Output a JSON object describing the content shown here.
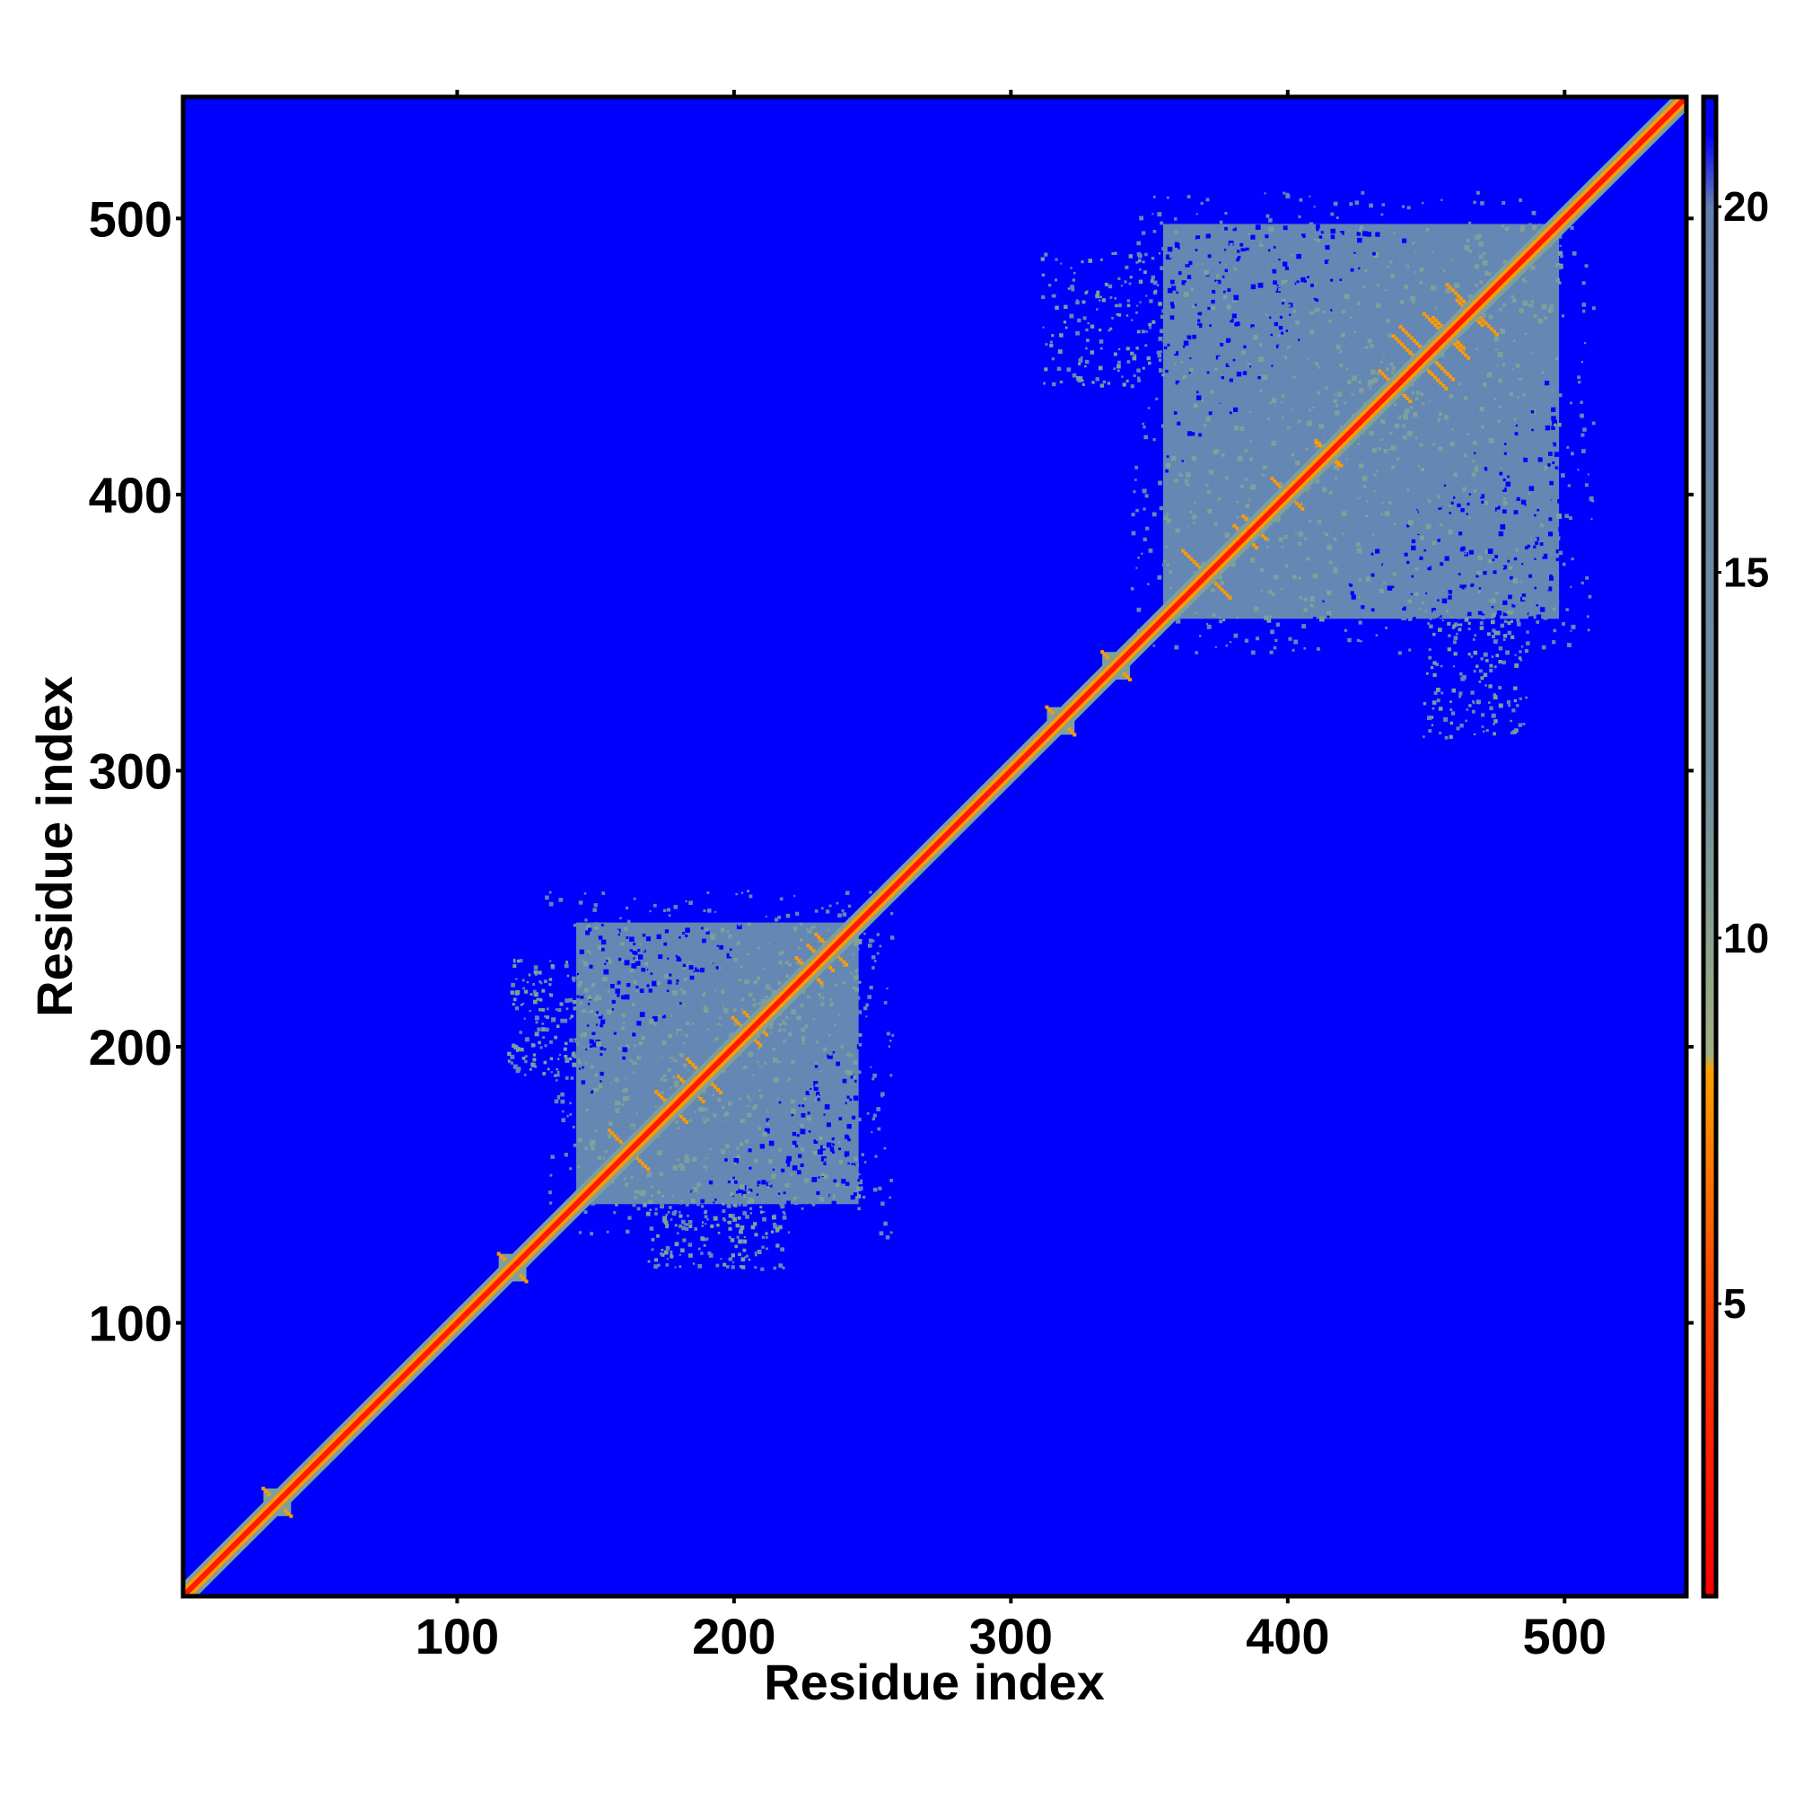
{
  "chart_data": {
    "type": "heatmap",
    "title": "",
    "xlabel": "Residue index",
    "ylabel": "Residue index",
    "xlim": [
      1,
      544
    ],
    "ylim": [
      1,
      544
    ],
    "x_ticks": [
      100,
      200,
      300,
      400,
      500
    ],
    "y_ticks": [
      100,
      200,
      300,
      400,
      500
    ],
    "diagonal": {
      "from": 1,
      "to": 544
    },
    "domains": [
      {
        "start": 143,
        "end": 245
      },
      {
        "start": 355,
        "end": 498
      }
    ],
    "small_contacts": [
      35,
      120,
      318,
      338
    ],
    "scatter_regions": [
      {
        "x": [
          118,
          150
        ],
        "y": [
          190,
          232
        ]
      },
      {
        "x": [
          168,
          218
        ],
        "y": [
          120,
          148
        ]
      },
      {
        "x": [
          310,
          355
        ],
        "y": [
          440,
          488
        ]
      },
      {
        "x": [
          448,
          486
        ],
        "y": [
          312,
          360
        ]
      }
    ],
    "colorbar": {
      "ticks": [
        5,
        10,
        15,
        20
      ],
      "range": [
        1,
        21.5
      ],
      "stops": [
        {
          "value": 1,
          "color": "#ff0000"
        },
        {
          "value": 5,
          "color": "#ff4000"
        },
        {
          "value": 8.2,
          "color": "#ffa000"
        },
        {
          "value": 8.4,
          "color": "#a0b080"
        },
        {
          "value": 12,
          "color": "#7090a0"
        },
        {
          "value": 20,
          "color": "#6080b0"
        },
        {
          "value": 21,
          "color": "#0000ff"
        }
      ]
    },
    "colors": {
      "background": "#0000ff",
      "domain": "#6487b4",
      "domain_light": "#7fa09a",
      "diagonal": "#ff1a00",
      "diagonal_edge": "#ff9a00"
    },
    "grid": false,
    "legend": "colorbar-right"
  }
}
